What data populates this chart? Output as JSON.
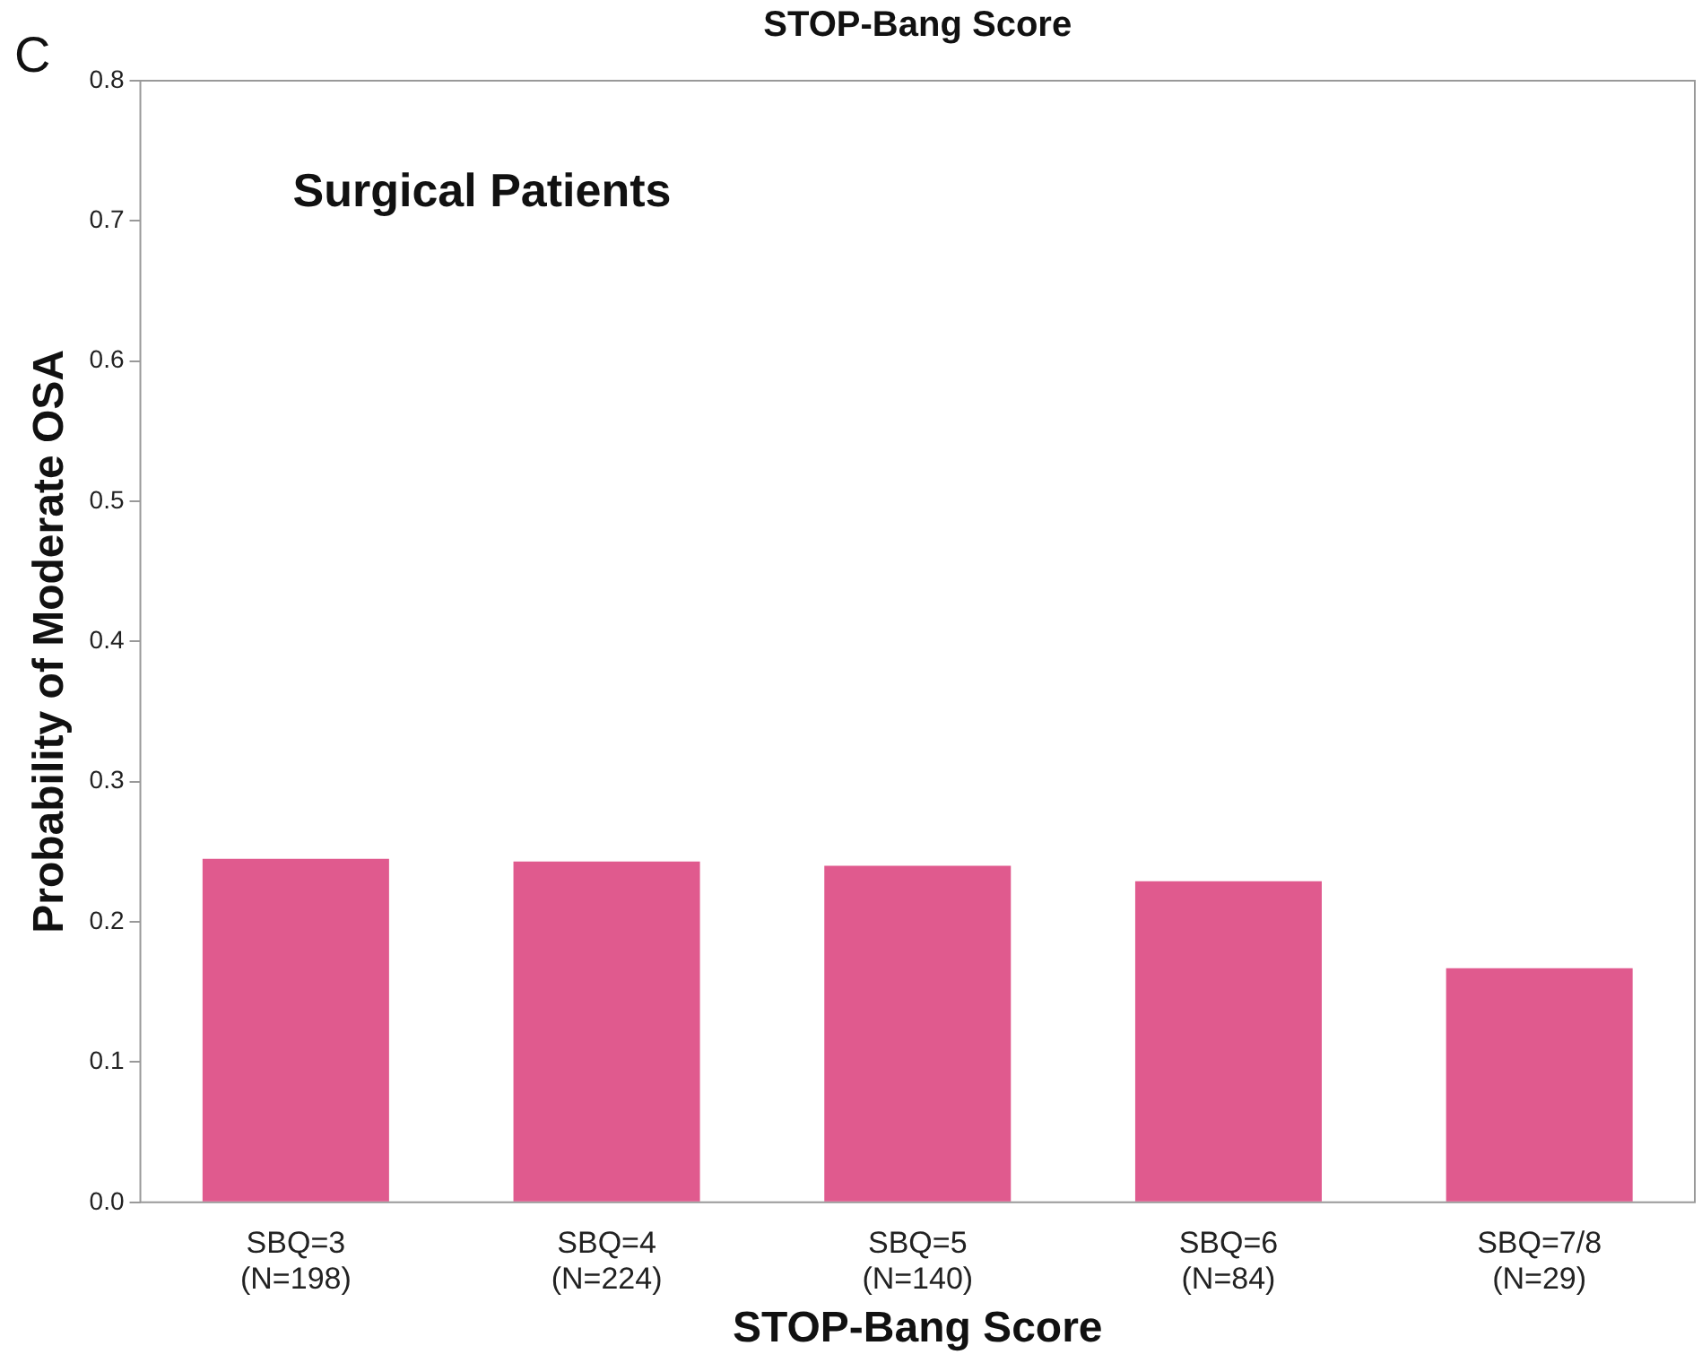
{
  "chart_data": {
    "type": "bar",
    "title": "Surgical Patients",
    "xlabel": "STOP-Bang Score",
    "ylabel": "Probability of Moderate OSA",
    "categories": [
      "SBQ=3\n(N=198)",
      "SBQ=4\n(N=224)",
      "SBQ=5\n(N=140)",
      "SBQ=6\n(N=84)",
      "SBQ=7/8\n(N=29)"
    ],
    "values": [
      0.245,
      0.243,
      0.24,
      0.229,
      0.167
    ],
    "color": "#e05a8e",
    "ylim": [
      0,
      0.8
    ],
    "yticks": [
      {
        "value": 0,
        "label": "0.0"
      },
      {
        "value": 0.1,
        "label": "0.1"
      },
      {
        "value": 0.2,
        "label": "0.2"
      },
      {
        "value": 0.3,
        "label": "0.3"
      },
      {
        "value": 0.4,
        "label": "0.4"
      },
      {
        "value": 0.5,
        "label": "0.5"
      },
      {
        "value": 0.6,
        "label": "0.6"
      },
      {
        "value": 0.7,
        "label": "0.7"
      },
      {
        "value": 0.8,
        "label": "0.8"
      }
    ],
    "grid": false,
    "legend": false,
    "annotations": [
      "C",
      "STOP-Bang Score"
    ]
  }
}
